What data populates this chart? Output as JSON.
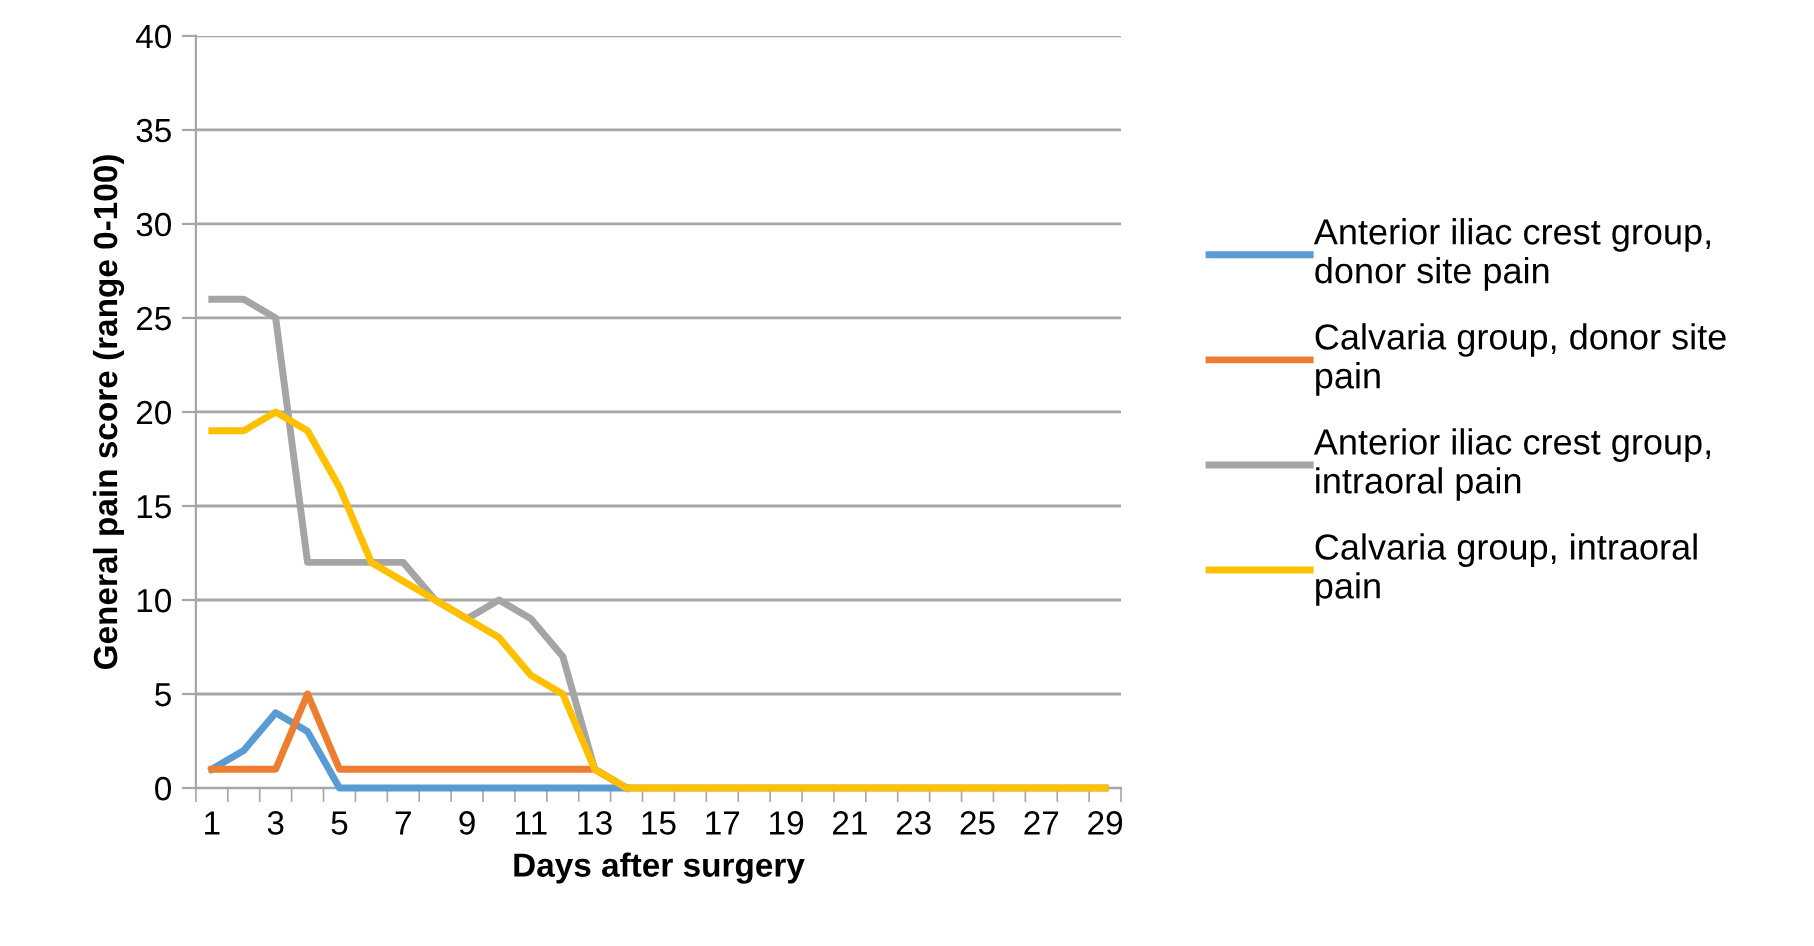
{
  "chart_data": {
    "type": "line",
    "xlabel": "Days after surgery",
    "ylabel": "General pain score (range 0-100)",
    "categories": [
      "1",
      null,
      "3",
      null,
      "5",
      null,
      "7",
      null,
      "9",
      null,
      "11",
      null,
      "13",
      null,
      "15",
      null,
      "17",
      null,
      "19",
      null,
      "21",
      null,
      "23",
      null,
      "25",
      null,
      "27",
      null,
      "29"
    ],
    "series": [
      {
        "name": "Anterior iliac crest group, donor site pain",
        "color": "#5b9bd5",
        "values": [
          1,
          2,
          4,
          3,
          0,
          0,
          0,
          0,
          0,
          0,
          0,
          0,
          0,
          0,
          null,
          null,
          null,
          null,
          null,
          null,
          null,
          null,
          null,
          null,
          null,
          null,
          null,
          null,
          null
        ]
      },
      {
        "name": "Calvaria group, donor site pain",
        "color": "#ed7d31",
        "values": [
          1,
          1,
          1,
          5,
          1,
          1,
          1,
          1,
          1,
          1,
          1,
          1,
          1,
          0,
          null,
          null,
          null,
          null,
          null,
          null,
          null,
          null,
          null,
          null,
          null,
          null,
          null,
          null,
          null
        ]
      },
      {
        "name": "Anterior iliac crest group, intraoral pain",
        "color": "#a5a5a5",
        "values": [
          26,
          26,
          25,
          12,
          12,
          12,
          12,
          10,
          9,
          10,
          9,
          7,
          1,
          0,
          0,
          0,
          0,
          0,
          0,
          0,
          0,
          0,
          0,
          0,
          0,
          0,
          0,
          0,
          0
        ]
      },
      {
        "name": "Calvaria group, intraoral pain",
        "color": "#ffc000",
        "values": [
          19,
          19,
          20,
          19,
          16,
          12,
          11,
          10,
          9,
          8,
          6,
          5,
          1,
          0,
          0,
          0,
          0,
          0,
          0,
          0,
          0,
          0,
          0,
          0,
          0,
          0,
          0,
          0,
          0
        ]
      }
    ],
    "ylim": [
      0,
      40
    ],
    "yticks": [
      0,
      5,
      10,
      15,
      20,
      25,
      30,
      35,
      40
    ],
    "grid": "y",
    "legend": "right",
    "marker": "none",
    "line_style": "solid"
  }
}
